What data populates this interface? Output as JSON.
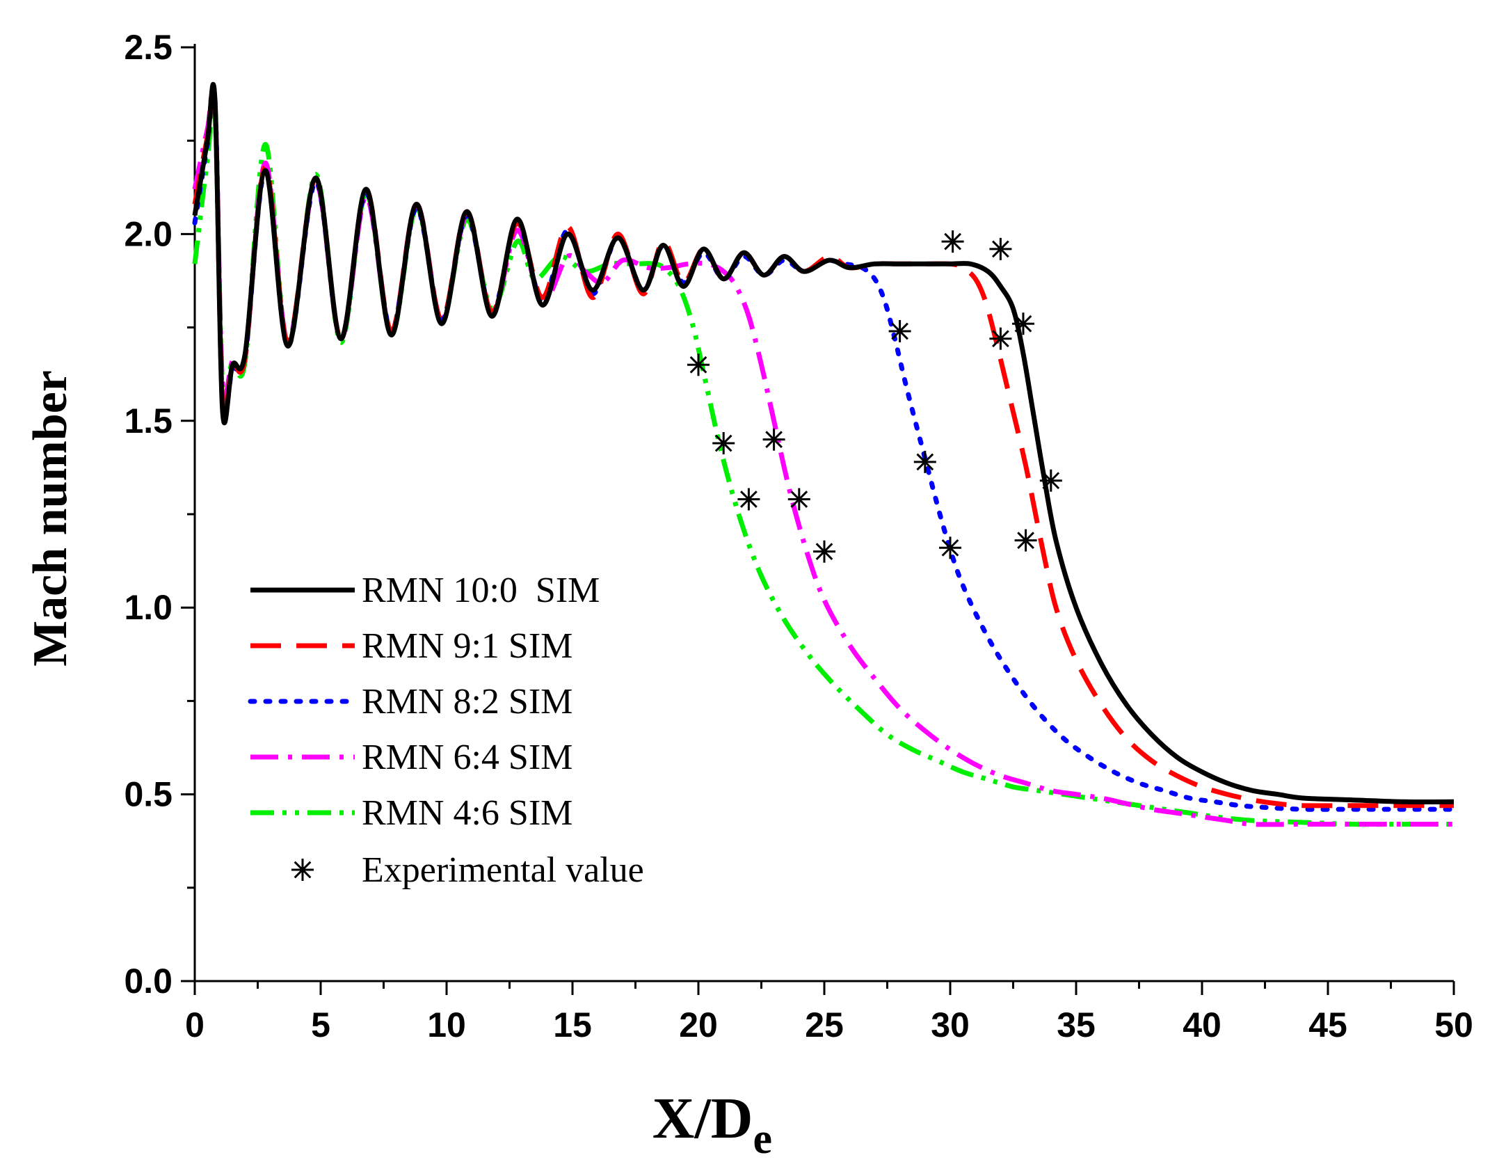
{
  "chart_data": {
    "type": "line",
    "xlabel_main": "X/D",
    "xlabel_sub": "e",
    "ylabel": "Mach number",
    "xlim": [
      0,
      50
    ],
    "ylim": [
      0.0,
      2.5
    ],
    "x_ticks": [
      "0",
      "5",
      "10",
      "15",
      "20",
      "25",
      "30",
      "35",
      "40",
      "45",
      "50"
    ],
    "y_ticks": [
      "0.0",
      "0.5",
      "1.0",
      "1.5",
      "2.0",
      "2.5"
    ],
    "grid": false,
    "legend_position": "lower-left",
    "series": [
      {
        "name": "RMN 10:0  SIM",
        "color": "#000000",
        "dash": "solid",
        "x": [
          0,
          0.5,
          0.8,
          1.1,
          1.5,
          2.0,
          2.8,
          3.7,
          4.8,
          5.8,
          6.8,
          7.8,
          8.8,
          9.8,
          10.8,
          11.8,
          12.8,
          13.8,
          14.8,
          15.8,
          16.8,
          17.8,
          18.6,
          19.4,
          20.2,
          21.0,
          21.8,
          22.6,
          23.4,
          24.2,
          25.2,
          26.0,
          27.0,
          28.0,
          29.0,
          30.0,
          30.8,
          31.5,
          32.0,
          32.5,
          32.9,
          33.3,
          33.7,
          34.2,
          35.0,
          36.0,
          37.0,
          38.0,
          39.0,
          40.0,
          41.0,
          42.0,
          43.0,
          44.0,
          46.0,
          48.0,
          50.0
        ],
        "y": [
          2.05,
          2.25,
          2.36,
          1.53,
          1.65,
          1.68,
          2.17,
          1.7,
          2.15,
          1.72,
          2.12,
          1.73,
          2.08,
          1.76,
          2.06,
          1.78,
          2.04,
          1.81,
          2.0,
          1.85,
          1.99,
          1.85,
          1.97,
          1.86,
          1.96,
          1.88,
          1.95,
          1.89,
          1.94,
          1.9,
          1.93,
          1.91,
          1.92,
          1.92,
          1.92,
          1.92,
          1.92,
          1.9,
          1.86,
          1.8,
          1.68,
          1.52,
          1.36,
          1.18,
          1.0,
          0.85,
          0.74,
          0.66,
          0.6,
          0.56,
          0.53,
          0.51,
          0.5,
          0.49,
          0.485,
          0.48,
          0.48
        ]
      },
      {
        "name": "RMN 9:1 SIM",
        "color": "#ff0000",
        "dash": "long-dash",
        "x": [
          0,
          0.5,
          0.8,
          1.1,
          1.5,
          2.0,
          2.8,
          3.7,
          4.8,
          5.8,
          6.8,
          7.8,
          8.8,
          9.8,
          10.8,
          11.8,
          12.8,
          13.8,
          14.8,
          15.8,
          16.8,
          17.8,
          18.6,
          19.4,
          20.2,
          21.0,
          21.8,
          22.6,
          23.4,
          24.2,
          25.2,
          26.0,
          27.0,
          28.0,
          29.0,
          30.0,
          30.5,
          31.0,
          31.4,
          31.8,
          32.3,
          33.0,
          33.6,
          34.2,
          35.0,
          36.0,
          37.0,
          38.0,
          39.0,
          40.0,
          41.0,
          42.0,
          43.0,
          44.0,
          46.0,
          48.0,
          50.0
        ],
        "y": [
          2.08,
          2.26,
          2.35,
          1.55,
          1.65,
          1.67,
          2.18,
          1.71,
          2.15,
          1.72,
          2.12,
          1.74,
          2.08,
          1.77,
          2.06,
          1.79,
          2.03,
          1.83,
          2.02,
          1.83,
          2.0,
          1.84,
          1.98,
          1.87,
          1.96,
          1.88,
          1.95,
          1.89,
          1.94,
          1.9,
          1.94,
          1.91,
          1.92,
          1.92,
          1.92,
          1.92,
          1.91,
          1.88,
          1.82,
          1.72,
          1.58,
          1.38,
          1.18,
          1.0,
          0.86,
          0.74,
          0.65,
          0.59,
          0.55,
          0.52,
          0.5,
          0.485,
          0.475,
          0.47,
          0.47,
          0.47,
          0.47
        ]
      },
      {
        "name": "RMN 8:2 SIM",
        "color": "#0000ff",
        "dash": "dot",
        "x": [
          0,
          0.5,
          0.8,
          1.1,
          1.5,
          2.0,
          2.8,
          3.7,
          4.8,
          5.8,
          6.8,
          7.8,
          8.8,
          9.8,
          10.8,
          11.8,
          12.8,
          13.8,
          14.8,
          15.8,
          16.8,
          17.8,
          18.6,
          19.4,
          20.2,
          21.0,
          21.8,
          22.6,
          23.4,
          24.2,
          25.0,
          25.8,
          26.5,
          27.0,
          27.4,
          27.8,
          28.3,
          29.0,
          29.8,
          30.5,
          31.5,
          32.5,
          33.5,
          34.5,
          35.5,
          36.5,
          37.5,
          38.5,
          39.5,
          40.5,
          41.5,
          42.5,
          44.0,
          46.0,
          48.0,
          50.0
        ],
        "y": [
          2.03,
          2.24,
          2.36,
          1.55,
          1.64,
          1.67,
          2.17,
          1.7,
          2.14,
          1.72,
          2.11,
          1.74,
          2.07,
          1.77,
          2.05,
          1.79,
          2.03,
          1.82,
          2.01,
          1.84,
          1.99,
          1.85,
          1.97,
          1.87,
          1.95,
          1.88,
          1.94,
          1.89,
          1.93,
          1.9,
          1.93,
          1.92,
          1.91,
          1.88,
          1.82,
          1.72,
          1.58,
          1.4,
          1.2,
          1.06,
          0.92,
          0.81,
          0.72,
          0.65,
          0.6,
          0.56,
          0.53,
          0.51,
          0.49,
          0.48,
          0.47,
          0.465,
          0.46,
          0.46,
          0.46,
          0.46
        ]
      },
      {
        "name": "RMN 6:4 SIM",
        "color": "#ff00ff",
        "dash": "dash-dot",
        "x": [
          0,
          0.5,
          0.8,
          1.1,
          1.5,
          2.0,
          2.8,
          3.7,
          4.8,
          5.8,
          6.8,
          7.8,
          8.8,
          9.8,
          10.8,
          11.8,
          12.8,
          13.8,
          14.8,
          15.5,
          16.2,
          17.0,
          18.0,
          18.8,
          19.6,
          20.4,
          21.0,
          21.5,
          22.0,
          22.5,
          23.0,
          23.6,
          24.3,
          25.0,
          26.0,
          27.0,
          28.0,
          29.0,
          30.0,
          31.0,
          32.0,
          33.0,
          34.0,
          35.0,
          36.0,
          37.0,
          38.0,
          39.0,
          40.0,
          41.0,
          42.0,
          44.0,
          46.0,
          48.0,
          50.0
        ],
        "y": [
          2.12,
          2.28,
          2.35,
          1.6,
          1.66,
          1.67,
          2.19,
          1.71,
          2.14,
          1.72,
          2.1,
          1.74,
          2.08,
          1.77,
          2.05,
          1.79,
          2.01,
          1.82,
          1.94,
          1.9,
          1.87,
          1.93,
          1.91,
          1.91,
          1.92,
          1.92,
          1.9,
          1.86,
          1.78,
          1.65,
          1.5,
          1.32,
          1.15,
          1.02,
          0.9,
          0.81,
          0.73,
          0.67,
          0.62,
          0.58,
          0.55,
          0.53,
          0.51,
          0.5,
          0.49,
          0.475,
          0.46,
          0.45,
          0.44,
          0.43,
          0.42,
          0.42,
          0.42,
          0.42,
          0.42
        ]
      },
      {
        "name": "RMN 4:6 SIM",
        "color": "#00ee00",
        "dash": "dash-dot-dot",
        "x": [
          0,
          0.5,
          0.8,
          1.1,
          1.5,
          2.0,
          2.8,
          3.7,
          4.8,
          5.8,
          6.8,
          7.8,
          8.8,
          9.8,
          10.8,
          11.8,
          12.8,
          13.5,
          14.5,
          15.5,
          16.5,
          17.5,
          18.3,
          18.8,
          19.3,
          19.8,
          20.3,
          20.9,
          21.6,
          22.4,
          23.3,
          24.3,
          25.3,
          26.5,
          27.5,
          28.5,
          29.5,
          30.5,
          31.5,
          32.5,
          33.5,
          34.5,
          35.5,
          36.5,
          37.5,
          38.5,
          39.5,
          40.5,
          42.0,
          44.0,
          46.0,
          48.0,
          50.0
        ],
        "y": [
          1.92,
          2.2,
          2.32,
          1.6,
          1.66,
          1.66,
          2.24,
          1.7,
          2.16,
          1.71,
          2.11,
          1.73,
          2.07,
          1.77,
          2.04,
          1.8,
          1.98,
          1.88,
          1.94,
          1.9,
          1.92,
          1.92,
          1.92,
          1.9,
          1.85,
          1.75,
          1.6,
          1.42,
          1.25,
          1.1,
          0.98,
          0.88,
          0.8,
          0.72,
          0.66,
          0.62,
          0.59,
          0.56,
          0.54,
          0.52,
          0.51,
          0.5,
          0.49,
          0.48,
          0.47,
          0.46,
          0.45,
          0.44,
          0.43,
          0.425,
          0.42,
          0.42,
          0.42
        ]
      }
    ],
    "experimental": {
      "name": "Experimental value",
      "x": [
        20.0,
        21.0,
        22.0,
        23.0,
        24.0,
        25.0,
        28.0,
        29.0,
        30.0,
        30.1,
        32.0,
        32.0,
        32.9,
        33.0,
        34.0
      ],
      "y": [
        1.65,
        1.44,
        1.29,
        1.45,
        1.29,
        1.15,
        1.74,
        1.39,
        1.16,
        1.98,
        1.96,
        1.72,
        1.76,
        1.18,
        1.34
      ]
    }
  }
}
